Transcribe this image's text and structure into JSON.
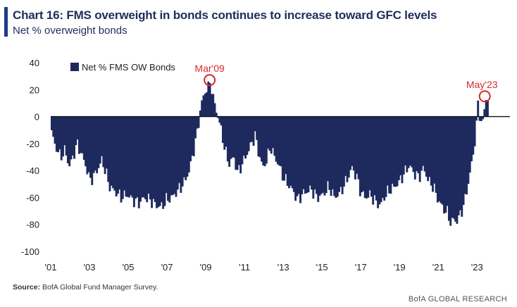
{
  "header": {
    "title": "Chart 16: FMS overweight in bonds continues to increase toward GFC levels",
    "subtitle": "Net % overweight bonds"
  },
  "footer": {
    "source_label": "Source:",
    "source_text": "BofA Global Fund Manager Survey.",
    "brand": "BofA GLOBAL RESEARCH"
  },
  "colors": {
    "bar": "#1e2a5e",
    "annotation": "#d42a2a",
    "axis": "#111111"
  },
  "chart_data": {
    "type": "bar",
    "title": "Chart 16: FMS overweight in bonds continues to increase toward GFC levels",
    "subtitle": "Net % overweight bonds",
    "xlabel": "",
    "ylabel": "",
    "ylim": [
      -100,
      40
    ],
    "xlim": [
      2001.0,
      2024.7
    ],
    "yticks": [
      40,
      20,
      0,
      -20,
      -40,
      -60,
      -80,
      -100
    ],
    "xticks": [
      "'01",
      "'03",
      "'05",
      "'07",
      "'09",
      "'11",
      "'13",
      "'15",
      "'17",
      "'19",
      "'21",
      "'23"
    ],
    "xtick_years": [
      2001,
      2003,
      2005,
      2007,
      2009,
      2011,
      2013,
      2015,
      2017,
      2019,
      2021,
      2023
    ],
    "legend": {
      "label": "Net % FMS OW Bonds",
      "position": "top-left"
    },
    "series": [
      {
        "name": "Net % FMS OW Bonds",
        "anchors": [
          [
            2001.0,
            -12
          ],
          [
            2001.2,
            -22
          ],
          [
            2001.45,
            -30
          ],
          [
            2001.7,
            -25
          ],
          [
            2001.9,
            -37
          ],
          [
            2002.1,
            -30
          ],
          [
            2002.3,
            -20
          ],
          [
            2002.55,
            -28
          ],
          [
            2002.8,
            -38
          ],
          [
            2002.95,
            -47
          ],
          [
            2003.15,
            -45
          ],
          [
            2003.4,
            -38
          ],
          [
            2003.6,
            -32
          ],
          [
            2003.8,
            -42
          ],
          [
            2004.0,
            -52
          ],
          [
            2004.3,
            -56
          ],
          [
            2004.6,
            -60
          ],
          [
            2004.9,
            -58
          ],
          [
            2005.2,
            -62
          ],
          [
            2005.5,
            -64
          ],
          [
            2005.8,
            -60
          ],
          [
            2006.1,
            -62
          ],
          [
            2006.4,
            -66
          ],
          [
            2006.7,
            -67
          ],
          [
            2006.9,
            -62
          ],
          [
            2007.2,
            -60
          ],
          [
            2007.5,
            -55
          ],
          [
            2007.8,
            -50
          ],
          [
            2008.1,
            -40
          ],
          [
            2008.4,
            -20
          ],
          [
            2008.55,
            -8
          ],
          [
            2008.7,
            8
          ],
          [
            2008.9,
            18
          ],
          [
            2009.05,
            22
          ],
          [
            2009.2,
            26
          ],
          [
            2009.35,
            12
          ],
          [
            2009.55,
            2
          ],
          [
            2009.75,
            -10
          ],
          [
            2009.95,
            -25
          ],
          [
            2010.15,
            -35
          ],
          [
            2010.4,
            -30
          ],
          [
            2010.6,
            -42
          ],
          [
            2010.8,
            -36
          ],
          [
            2011.0,
            -30
          ],
          [
            2011.25,
            -22
          ],
          [
            2011.5,
            -14
          ],
          [
            2011.7,
            -28
          ],
          [
            2011.9,
            -38
          ],
          [
            2012.1,
            -32
          ],
          [
            2012.3,
            -22
          ],
          [
            2012.5,
            -30
          ],
          [
            2012.7,
            -35
          ],
          [
            2012.95,
            -45
          ],
          [
            2013.2,
            -50
          ],
          [
            2013.45,
            -55
          ],
          [
            2013.7,
            -62
          ],
          [
            2013.9,
            -58
          ],
          [
            2014.1,
            -56
          ],
          [
            2014.4,
            -54
          ],
          [
            2014.7,
            -60
          ],
          [
            2015.0,
            -58
          ],
          [
            2015.3,
            -52
          ],
          [
            2015.6,
            -60
          ],
          [
            2015.9,
            -56
          ],
          [
            2016.2,
            -48
          ],
          [
            2016.5,
            -38
          ],
          [
            2016.75,
            -45
          ],
          [
            2016.95,
            -56
          ],
          [
            2017.2,
            -60
          ],
          [
            2017.45,
            -58
          ],
          [
            2017.7,
            -63
          ],
          [
            2017.95,
            -66
          ],
          [
            2018.15,
            -60
          ],
          [
            2018.4,
            -55
          ],
          [
            2018.7,
            -52
          ],
          [
            2018.95,
            -48
          ],
          [
            2019.2,
            -42
          ],
          [
            2019.45,
            -36
          ],
          [
            2019.7,
            -42
          ],
          [
            2019.95,
            -45
          ],
          [
            2020.2,
            -38
          ],
          [
            2020.45,
            -48
          ],
          [
            2020.7,
            -52
          ],
          [
            2020.95,
            -62
          ],
          [
            2021.2,
            -68
          ],
          [
            2021.45,
            -72
          ],
          [
            2021.6,
            -80
          ],
          [
            2021.75,
            -76
          ],
          [
            2021.9,
            -78
          ],
          [
            2022.1,
            -72
          ],
          [
            2022.3,
            -64
          ],
          [
            2022.55,
            -45
          ],
          [
            2022.75,
            -28
          ],
          [
            2022.9,
            -10
          ],
          [
            2023.0,
            10
          ],
          [
            2023.15,
            -5
          ],
          [
            2023.25,
            -4
          ],
          [
            2023.4,
            14
          ],
          [
            2023.55,
            12
          ]
        ]
      }
    ],
    "annotations": [
      {
        "label": "Mar'09",
        "x": 2009.2,
        "y": 26
      },
      {
        "label": "May'23",
        "x": 2023.4,
        "y": 14
      }
    ]
  }
}
